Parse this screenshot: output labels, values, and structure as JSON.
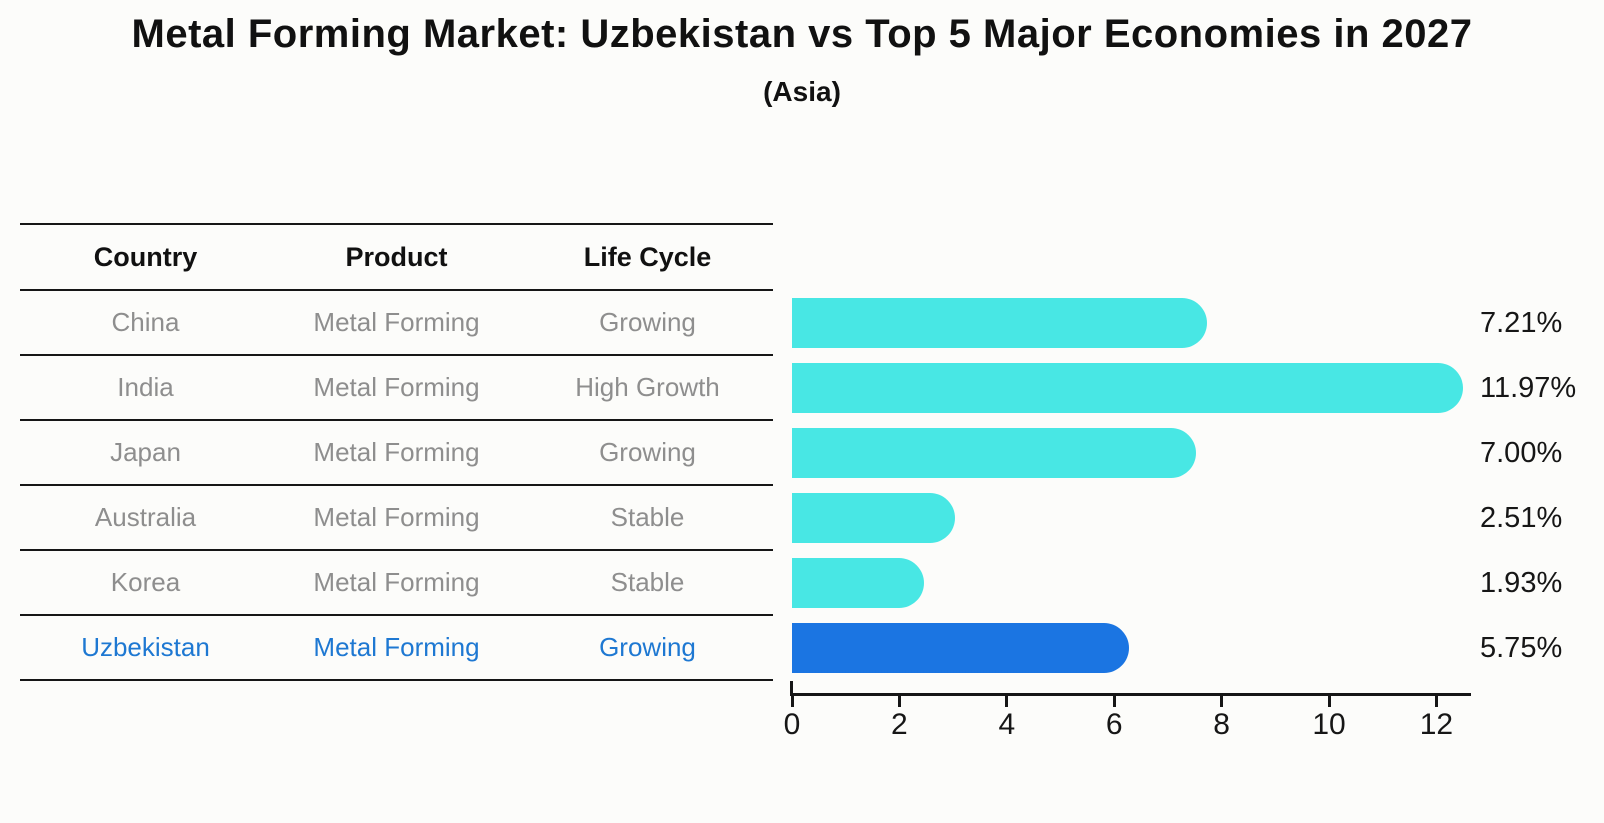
{
  "header": {
    "title": "Metal Forming Market: Uzbekistan vs Top 5 Major Economies in 2027",
    "subtitle": "(Asia)"
  },
  "table": {
    "columns": [
      "Country",
      "Product",
      "Life Cycle"
    ],
    "rows": [
      {
        "country": "China",
        "product": "Metal Forming",
        "life_cycle": "Growing",
        "highlight": false
      },
      {
        "country": "India",
        "product": "Metal Forming",
        "life_cycle": "High Growth",
        "highlight": false
      },
      {
        "country": "Japan",
        "product": "Metal Forming",
        "life_cycle": "Growing",
        "highlight": false
      },
      {
        "country": "Australia",
        "product": "Metal Forming",
        "life_cycle": "Stable",
        "highlight": false
      },
      {
        "country": "Korea",
        "product": "Metal Forming",
        "life_cycle": "Stable",
        "highlight": false
      },
      {
        "country": "Uzbekistan",
        "product": "Metal Forming",
        "life_cycle": "Growing",
        "highlight": true
      }
    ]
  },
  "chart_data": {
    "type": "bar",
    "orientation": "horizontal",
    "title": "Metal Forming Market: Uzbekistan vs Top 5 Major Economies in 2027",
    "subtitle": "(Asia)",
    "categories": [
      "China",
      "India",
      "Japan",
      "Australia",
      "Korea",
      "Uzbekistan"
    ],
    "values": [
      7.21,
      11.97,
      7.0,
      2.51,
      1.93,
      5.75
    ],
    "value_labels": [
      "7.21%",
      "11.97%",
      "7.00%",
      "2.51%",
      "1.93%",
      "5.75%"
    ],
    "highlight_category": "Uzbekistan",
    "xlim": [
      0,
      12.65
    ],
    "xticks": [
      0,
      2,
      4,
      6,
      8,
      10,
      12
    ],
    "grid": false,
    "legend": false
  },
  "colors": {
    "bar": "#48e7e4",
    "highlight_bar": "#1b75e2",
    "highlight_text": "#1e78d2",
    "table_text": "#8e8e8e",
    "axis": "#161616",
    "background": "#fcfcfa"
  }
}
